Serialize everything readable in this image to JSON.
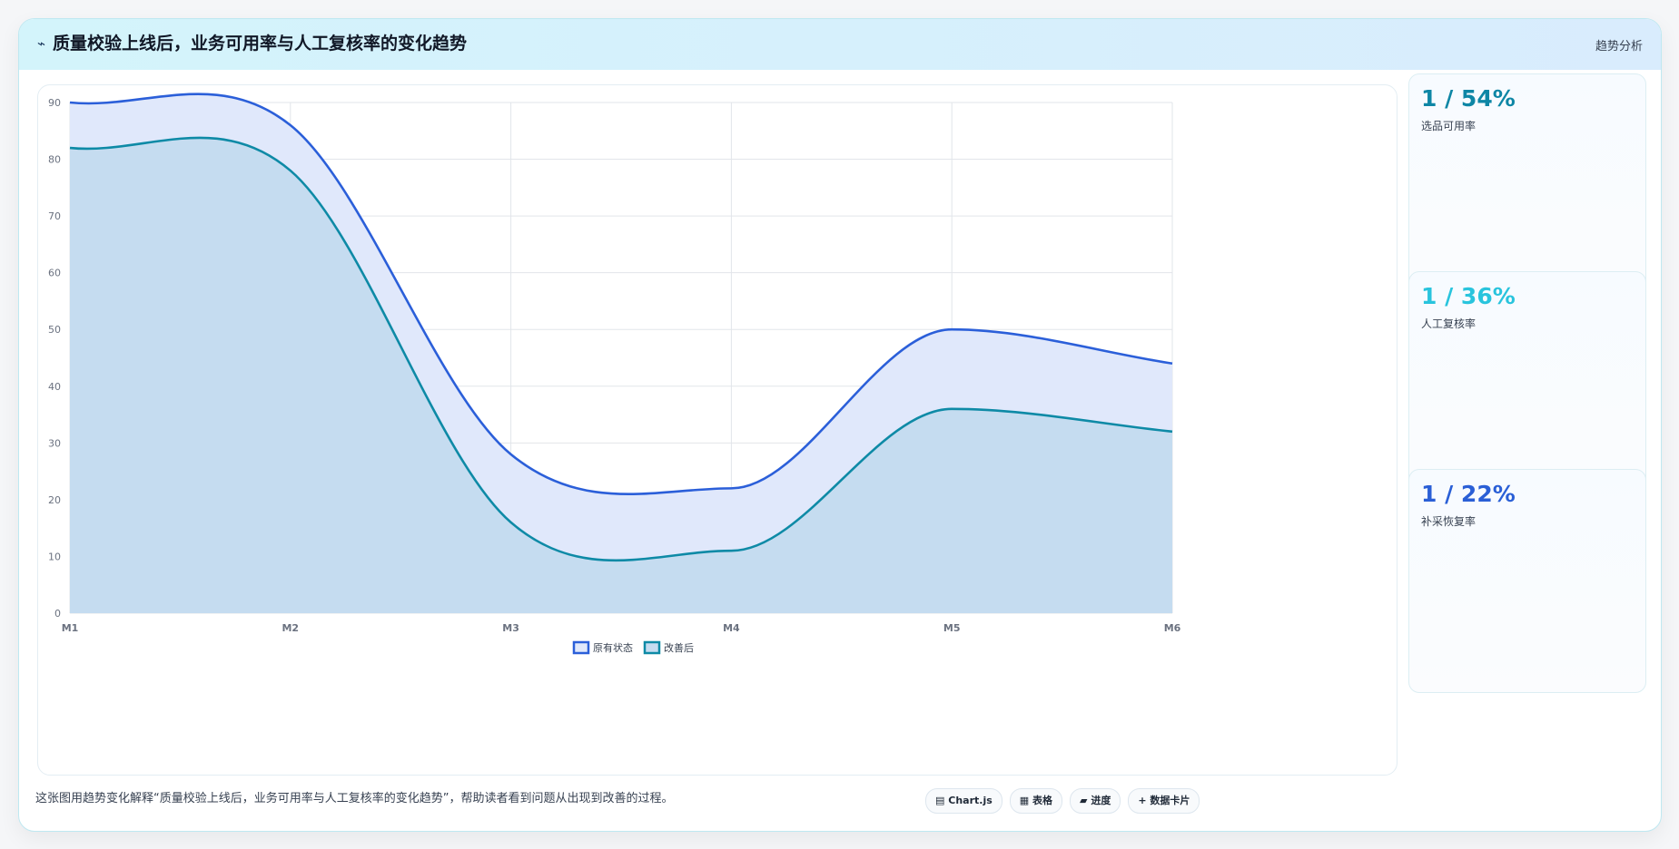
{
  "header": {
    "icon": "sparkline-icon",
    "icon_glyph": "⌁",
    "title": "质量校验上线后，业务可用率与人工复核率的变化趋势",
    "tag": "趋势分析"
  },
  "chart_data": {
    "type": "area",
    "categories": [
      "M1",
      "M2",
      "M3",
      "M4",
      "M5",
      "M6"
    ],
    "series": [
      {
        "name": "原有状态",
        "values": [
          90,
          86,
          28,
          22,
          50,
          44
        ],
        "color": "#2b5fd9",
        "fill": "#e0e8fb"
      },
      {
        "name": "改善后",
        "values": [
          82,
          78,
          16,
          11,
          36,
          32
        ],
        "color": "#0e8aa6",
        "fill": "#c5dcf0"
      }
    ],
    "ylim": [
      0,
      90
    ],
    "yticks": [
      0,
      10,
      20,
      30,
      40,
      50,
      60,
      70,
      80,
      90
    ],
    "grid": true,
    "legend": "bottom",
    "title": "",
    "xlabel": "",
    "ylabel": ""
  },
  "cards": [
    {
      "value": "1 / 54%",
      "label": "选品可用率",
      "color": "#0e86a5"
    },
    {
      "value": "1 / 36%",
      "label": "人工复核率",
      "color": "#29c4dd"
    },
    {
      "value": "1 / 22%",
      "label": "补采恢复率",
      "color": "#2a5fd6"
    }
  ],
  "footer": {
    "description": "这张图用趋势变化解释“质量校验上线后，业务可用率与人工复核率的变化趋势”，帮助读者看到问题从出现到改善的过程。",
    "pills": [
      {
        "icon": "database-icon",
        "glyph": "▤",
        "label": "Chart.js"
      },
      {
        "icon": "table-icon",
        "glyph": "▦",
        "label": "表格"
      },
      {
        "icon": "progress-icon",
        "glyph": "▰",
        "label": "进度"
      },
      {
        "icon": "card-icon",
        "glyph": "+",
        "label": "数据卡片"
      }
    ]
  }
}
